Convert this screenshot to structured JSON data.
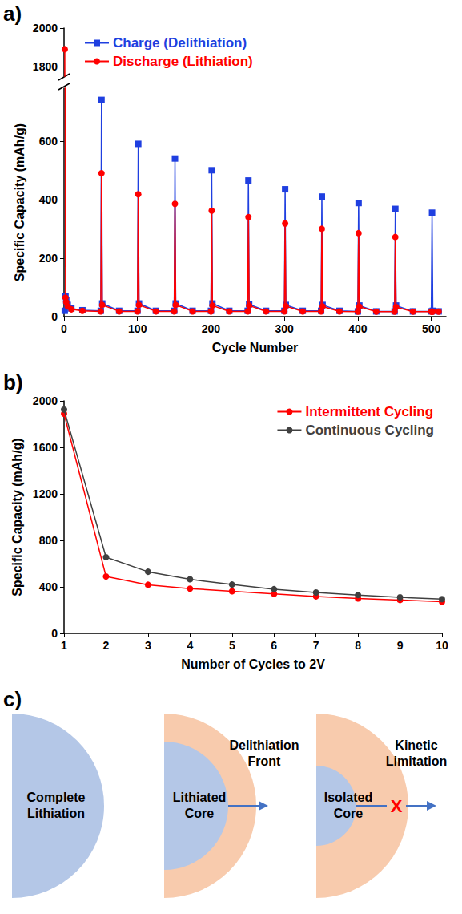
{
  "chart_data": [
    {
      "label": "a)",
      "type": "line",
      "x_label": "Cycle Number",
      "y_label": "Specific Capacity (mAh/g)",
      "x": [
        1,
        2,
        3,
        5,
        10,
        25,
        50,
        51,
        52,
        75,
        100,
        101,
        102,
        125,
        150,
        151,
        152,
        175,
        200,
        201,
        202,
        225,
        250,
        251,
        252,
        275,
        300,
        301,
        302,
        325,
        350,
        351,
        352,
        375,
        400,
        401,
        402,
        425,
        450,
        451,
        452,
        475,
        500,
        501,
        502,
        510
      ],
      "xlim": [
        0,
        520
      ],
      "xticks": [
        0,
        100,
        200,
        300,
        400,
        500
      ],
      "ylim": [
        0,
        2000
      ],
      "yticks": [
        0,
        200,
        400,
        600,
        1800,
        2000
      ],
      "y_break": [
        780,
        1750
      ],
      "grid": false,
      "legend": "upper left",
      "series": [
        {
          "name": "Charge (Delithiation)",
          "color": "#1f3fe0",
          "marker": "square",
          "values": [
            20,
            70,
            55,
            40,
            28,
            22,
            20,
            740,
            45,
            20,
            20,
            590,
            45,
            20,
            20,
            540,
            45,
            20,
            20,
            500,
            45,
            20,
            20,
            465,
            42,
            20,
            20,
            435,
            40,
            20,
            20,
            410,
            40,
            20,
            18,
            388,
            38,
            18,
            18,
            368,
            38,
            18,
            18,
            355,
            20,
            18
          ]
        },
        {
          "name": "Discharge (Lithiation)",
          "color": "#ff0000",
          "marker": "circle",
          "values": [
            1890,
            65,
            50,
            35,
            25,
            20,
            18,
            490,
            40,
            18,
            18,
            418,
            40,
            18,
            18,
            385,
            40,
            18,
            18,
            362,
            38,
            18,
            18,
            340,
            38,
            18,
            18,
            318,
            36,
            18,
            18,
            300,
            35,
            18,
            17,
            285,
            34,
            17,
            17,
            272,
            33,
            17,
            17,
            17,
            17,
            17
          ]
        }
      ]
    },
    {
      "label": "b)",
      "type": "line",
      "x_label": "Number of Cycles to 2V",
      "y_label": "Specific Capacity (mAh/g)",
      "x": [
        1,
        2,
        3,
        4,
        5,
        6,
        7,
        8,
        9,
        10
      ],
      "xlim": [
        1,
        10
      ],
      "xticks": [
        1,
        2,
        3,
        4,
        5,
        6,
        7,
        8,
        9,
        10
      ],
      "ylim": [
        0,
        2000
      ],
      "yticks": [
        0,
        400,
        800,
        1200,
        1600,
        2000
      ],
      "grid": false,
      "legend": "upper right",
      "series": [
        {
          "name": "Intermittent Cycling",
          "color": "#ff0000",
          "marker": "circle",
          "values": [
            1890,
            490,
            418,
            385,
            362,
            340,
            318,
            300,
            287,
            272
          ]
        },
        {
          "name": "Continuous Cycling",
          "color": "#404040",
          "marker": "circle",
          "values": [
            1925,
            655,
            530,
            465,
            420,
            380,
            352,
            330,
            310,
            295
          ]
        }
      ]
    }
  ],
  "diagram": {
    "label": "c)",
    "stages": [
      {
        "core": "Complete Lithiation"
      },
      {
        "core": "Lithiated Core",
        "front": "Delithiation Front"
      },
      {
        "core": "Isolated Core",
        "front": "Kinetic Limitation",
        "block": "X"
      }
    ]
  }
}
